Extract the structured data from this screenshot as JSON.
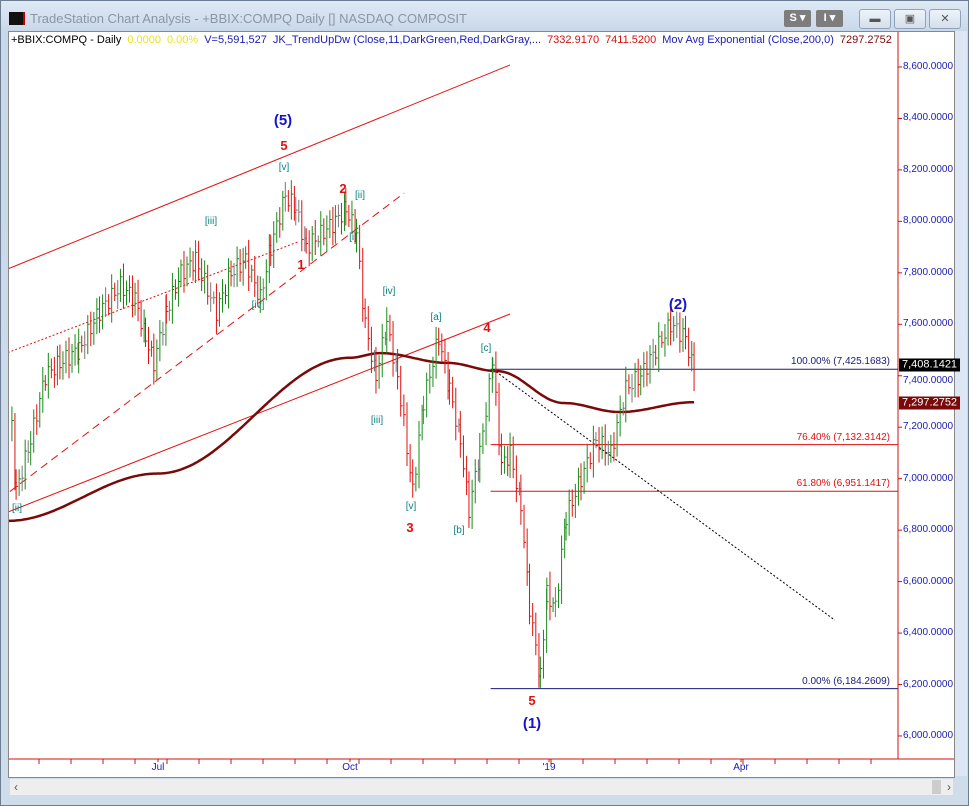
{
  "window": {
    "title": "TradeStation Chart Analysis - +BBIX:COMPQ Daily [] NASDAQ COMPOSIT",
    "buttons": {
      "s": "S ▾",
      "i": "I ▾"
    }
  },
  "header": {
    "symbol": "+BBIX:COMPQ - Daily",
    "change": "0.0000",
    "change_pct": "0.00%",
    "volume": "V=5,591,527",
    "indicator1": "JK_TrendUpDw (Close,11,DarkGreen,Red,DarkGray,...",
    "ind1_v1": "7332.9170",
    "ind1_v2": "7411.5200",
    "indicator2": "Mov Avg Exponential (Close,200,0)",
    "ind2_v": "7297.2752"
  },
  "colors": {
    "up": "#1a8a1a",
    "down": "#e01010",
    "neutral": "#777777",
    "ema": "#7a0a0a",
    "axis": "#d01010",
    "tick_text": "#1a1ab4",
    "wave_teal": "#0b8080",
    "wave_red": "#e01010",
    "wave_blue": "#1414c8"
  },
  "chart_data": {
    "type": "ohlc-bar",
    "ylim": [
      5900,
      8700
    ],
    "y_ticks": [
      "8,600.0000",
      "8,400.0000",
      "8,200.0000",
      "8,000.0000",
      "7,800.0000",
      "7,600.0000",
      "7,400.0000",
      "7,200.0000",
      "7,000.0000",
      "6,800.0000",
      "6,600.0000",
      "6,400.0000",
      "6,200.0000",
      "6,000.0000"
    ],
    "y_tick_values": [
      8600,
      8400,
      8200,
      8000,
      7800,
      7600,
      7400,
      7200,
      7000,
      6800,
      6600,
      6400,
      6200,
      6000
    ],
    "x_ticks": [
      {
        "label": "Jul",
        "date": "2018-07-01"
      },
      {
        "label": "Oct",
        "date": "2018-10-01"
      },
      {
        "label": "'19",
        "date": "2019-01-01"
      },
      {
        "label": "Apr",
        "date": "2019-04-01"
      }
    ],
    "price": [
      [
        "2018-04-22",
        7200
      ],
      [
        "2018-04-24",
        6950
      ],
      [
        "2018-05-01",
        7150
      ],
      [
        "2018-05-08",
        7400
      ],
      [
        "2018-05-15",
        7450
      ],
      [
        "2018-05-24",
        7500
      ],
      [
        "2018-06-03",
        7650
      ],
      [
        "2018-06-13",
        7750
      ],
      [
        "2018-06-20",
        7700
      ],
      [
        "2018-06-25",
        7550
      ],
      [
        "2018-06-29",
        7450
      ],
      [
        "2018-07-05",
        7650
      ],
      [
        "2018-07-12",
        7800
      ],
      [
        "2018-07-19",
        7850
      ],
      [
        "2018-07-29",
        7650
      ],
      [
        "2018-08-05",
        7800
      ],
      [
        "2018-08-12",
        7850
      ],
      [
        "2018-08-19",
        7700
      ],
      [
        "2018-08-24",
        7900
      ],
      [
        "2018-08-31",
        8100
      ],
      [
        "2018-09-05",
        8050
      ],
      [
        "2018-09-10",
        7900
      ],
      [
        "2018-09-17",
        7950
      ],
      [
        "2018-09-24",
        8000
      ],
      [
        "2018-09-29",
        8050
      ],
      [
        "2018-10-04",
        7950
      ],
      [
        "2018-10-08",
        7600
      ],
      [
        "2018-10-13",
        7400
      ],
      [
        "2018-10-18",
        7600
      ],
      [
        "2018-10-23",
        7400
      ],
      [
        "2018-10-30",
        6950
      ],
      [
        "2018-11-04",
        7300
      ],
      [
        "2018-11-11",
        7550
      ],
      [
        "2018-11-16",
        7350
      ],
      [
        "2018-11-21",
        7150
      ],
      [
        "2018-11-25",
        6880
      ],
      [
        "2018-11-30",
        7100
      ],
      [
        "2018-12-06",
        7450
      ],
      [
        "2018-12-10",
        7050
      ],
      [
        "2018-12-14",
        7100
      ],
      [
        "2018-12-19",
        6900
      ],
      [
        "2018-12-23",
        6500
      ],
      [
        "2018-12-28",
        6230
      ],
      [
        "2018-12-31",
        6550
      ],
      [
        "2019-01-04",
        6500
      ],
      [
        "2019-01-09",
        6850
      ],
      [
        "2019-01-16",
        7000
      ],
      [
        "2019-01-23",
        7150
      ],
      [
        "2019-01-30",
        7100
      ],
      [
        "2019-02-06",
        7350
      ],
      [
        "2019-02-13",
        7400
      ],
      [
        "2019-02-20",
        7500
      ],
      [
        "2019-02-27",
        7600
      ],
      [
        "2019-03-06",
        7550
      ],
      [
        "2019-03-10",
        7408.1421
      ]
    ],
    "ema200": [
      [
        "2018-04-20",
        6836
      ],
      [
        "2018-07-01",
        7020
      ],
      [
        "2018-10-01",
        7470
      ],
      [
        "2018-10-15",
        7488
      ],
      [
        "2018-11-15",
        7450
      ],
      [
        "2018-12-08",
        7418
      ],
      [
        "2019-01-08",
        7294
      ],
      [
        "2019-02-03",
        7259
      ],
      [
        "2019-03-10",
        7297.2752
      ]
    ],
    "trendlines": [
      {
        "style": "solid",
        "color": "#e01010",
        "from": [
          "2018-04-20",
          7815
        ],
        "to": [
          "2018-12-14",
          8608
        ]
      },
      {
        "style": "dotted",
        "color": "#e01010",
        "from": [
          "2018-04-20",
          7490
        ],
        "to": [
          "2018-09-06",
          7920
        ]
      },
      {
        "style": "dashed",
        "color": "#e01010",
        "from": [
          "2018-04-21",
          6950
        ],
        "to": [
          "2018-10-26",
          8110
        ]
      },
      {
        "style": "solid",
        "color": "#e01010",
        "from": [
          "2018-04-20",
          6870
        ],
        "to": [
          "2018-12-14",
          7640
        ]
      },
      {
        "style": "dotted",
        "color": "#000000",
        "from": [
          "2018-12-06",
          7425
        ],
        "to": [
          "2019-05-15",
          6450
        ]
      }
    ],
    "fib_levels": [
      {
        "label": "100.00% (7,425.1683)",
        "value": 7425.1683,
        "color": "#1a1a7a"
      },
      {
        "label": "76.40% (7,132.3142)",
        "value": 7132.3142,
        "color": "#e01010"
      },
      {
        "label": "61.80% (6,951.1417)",
        "value": 6951.1417,
        "color": "#e01010"
      },
      {
        "label": "0.00% (6,184.2609)",
        "value": 6184.2609,
        "color": "#1a1a7a"
      }
    ],
    "last_price": "7,408.1421",
    "ema_price": "7,297.2752",
    "wave_labels": [
      {
        "text": "(5)",
        "cls": "blue"
      },
      {
        "text": "5",
        "cls": "red"
      },
      {
        "text": "[v]",
        "cls": "teal"
      },
      {
        "text": "[iii]",
        "cls": "teal"
      },
      {
        "text": "2",
        "cls": "red"
      },
      {
        "text": "[ii]",
        "cls": "teal"
      },
      {
        "text": "[i]",
        "cls": "teal"
      },
      {
        "text": "1",
        "cls": "red"
      },
      {
        "text": "[iv]",
        "cls": "teal"
      },
      {
        "text": "[iv]",
        "cls": "teal"
      },
      {
        "text": "[a]",
        "cls": "teal"
      },
      {
        "text": "4",
        "cls": "red"
      },
      {
        "text": "[c]",
        "cls": "teal"
      },
      {
        "text": "[iii]",
        "cls": "teal"
      },
      {
        "text": "[v]",
        "cls": "teal"
      },
      {
        "text": "3",
        "cls": "red"
      },
      {
        "text": "[b]",
        "cls": "teal"
      },
      {
        "text": "[ii]",
        "cls": "teal"
      },
      {
        "text": "5",
        "cls": "red"
      },
      {
        "text": "(1)",
        "cls": "blue"
      },
      {
        "text": "(2)",
        "cls": "blue"
      }
    ]
  }
}
